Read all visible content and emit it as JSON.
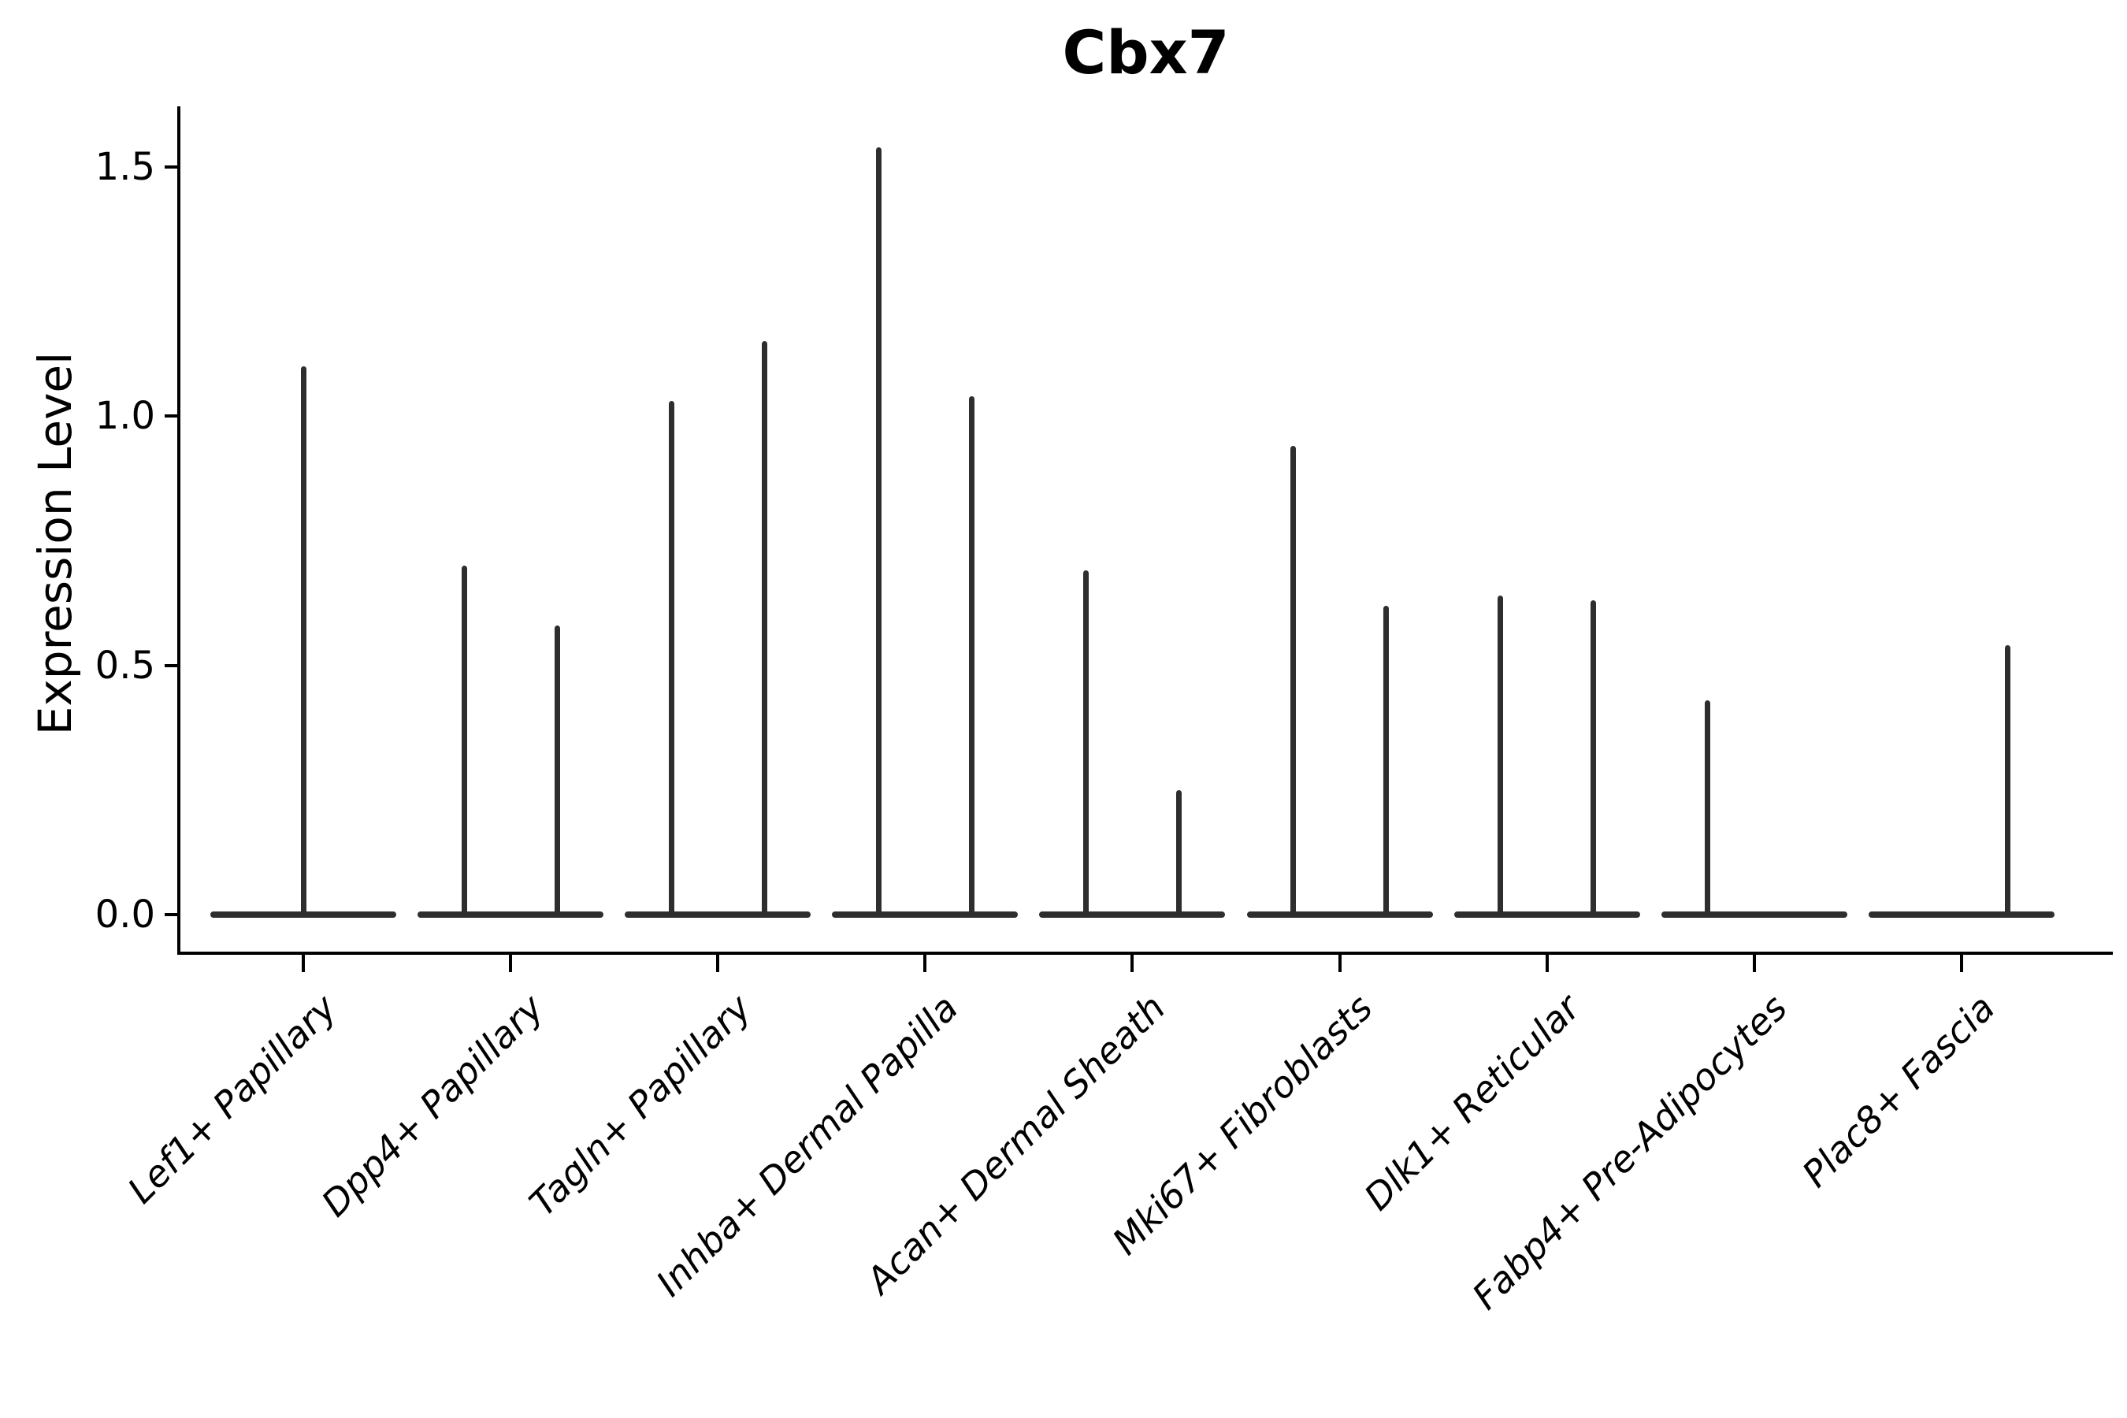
{
  "chart_data": {
    "type": "violin",
    "title": "Cbx7",
    "ylabel": "Expression Level",
    "xlabel": "",
    "ylim": [
      -0.08,
      1.62
    ],
    "yticks": [
      {
        "label": "0.0",
        "value": 0.0
      },
      {
        "label": "0.5",
        "value": 0.5
      },
      {
        "label": "1.0",
        "value": 1.0
      },
      {
        "label": "1.5",
        "value": 1.5
      }
    ],
    "grid": false,
    "legend": null,
    "categories": [
      "Lef1+ Papillary",
      "Dpp4+ Papillary",
      "Tagln+ Papillary",
      "Inhba+ Dermal Papilla",
      "Acan+ Dermal Sheath",
      "Mki67+ Fibroblasts",
      "Dlk1+ Reticular",
      "Fabp4+ Pre-Adipocytes",
      "Plac8+ Fascia"
    ],
    "violins": [
      {
        "category": "Lef1+ Papillary",
        "needles": [
          {
            "position": "center",
            "max_expression": 1.1
          }
        ]
      },
      {
        "category": "Dpp4+ Papillary",
        "needles": [
          {
            "position": "left",
            "max_expression": 0.7
          },
          {
            "position": "right",
            "max_expression": 0.58
          }
        ]
      },
      {
        "category": "Tagln+ Papillary",
        "needles": [
          {
            "position": "left",
            "max_expression": 1.03
          },
          {
            "position": "right",
            "max_expression": 1.15
          }
        ]
      },
      {
        "category": "Inhba+ Dermal Papilla",
        "needles": [
          {
            "position": "left",
            "max_expression": 1.54
          },
          {
            "position": "right",
            "max_expression": 1.04
          }
        ]
      },
      {
        "category": "Acan+ Dermal Sheath",
        "needles": [
          {
            "position": "left",
            "max_expression": 0.69
          },
          {
            "position": "right",
            "max_expression": 0.25
          }
        ]
      },
      {
        "category": "Mki67+ Fibroblasts",
        "needles": [
          {
            "position": "left",
            "max_expression": 0.94
          },
          {
            "position": "right",
            "max_expression": 0.62
          }
        ]
      },
      {
        "category": "Dlk1+ Reticular",
        "needles": [
          {
            "position": "left",
            "max_expression": 0.64
          },
          {
            "position": "right",
            "max_expression": 0.63
          }
        ]
      },
      {
        "category": "Fabp4+ Pre-Adipocytes",
        "needles": [
          {
            "position": "left",
            "max_expression": 0.43
          }
        ]
      },
      {
        "category": "Plac8+ Fascia",
        "needles": [
          {
            "position": "right",
            "max_expression": 0.54
          }
        ]
      }
    ],
    "colors": {
      "violin": "#2e2e2e",
      "axis": "#000000",
      "text": "#000000",
      "background": "#ffffff"
    }
  }
}
